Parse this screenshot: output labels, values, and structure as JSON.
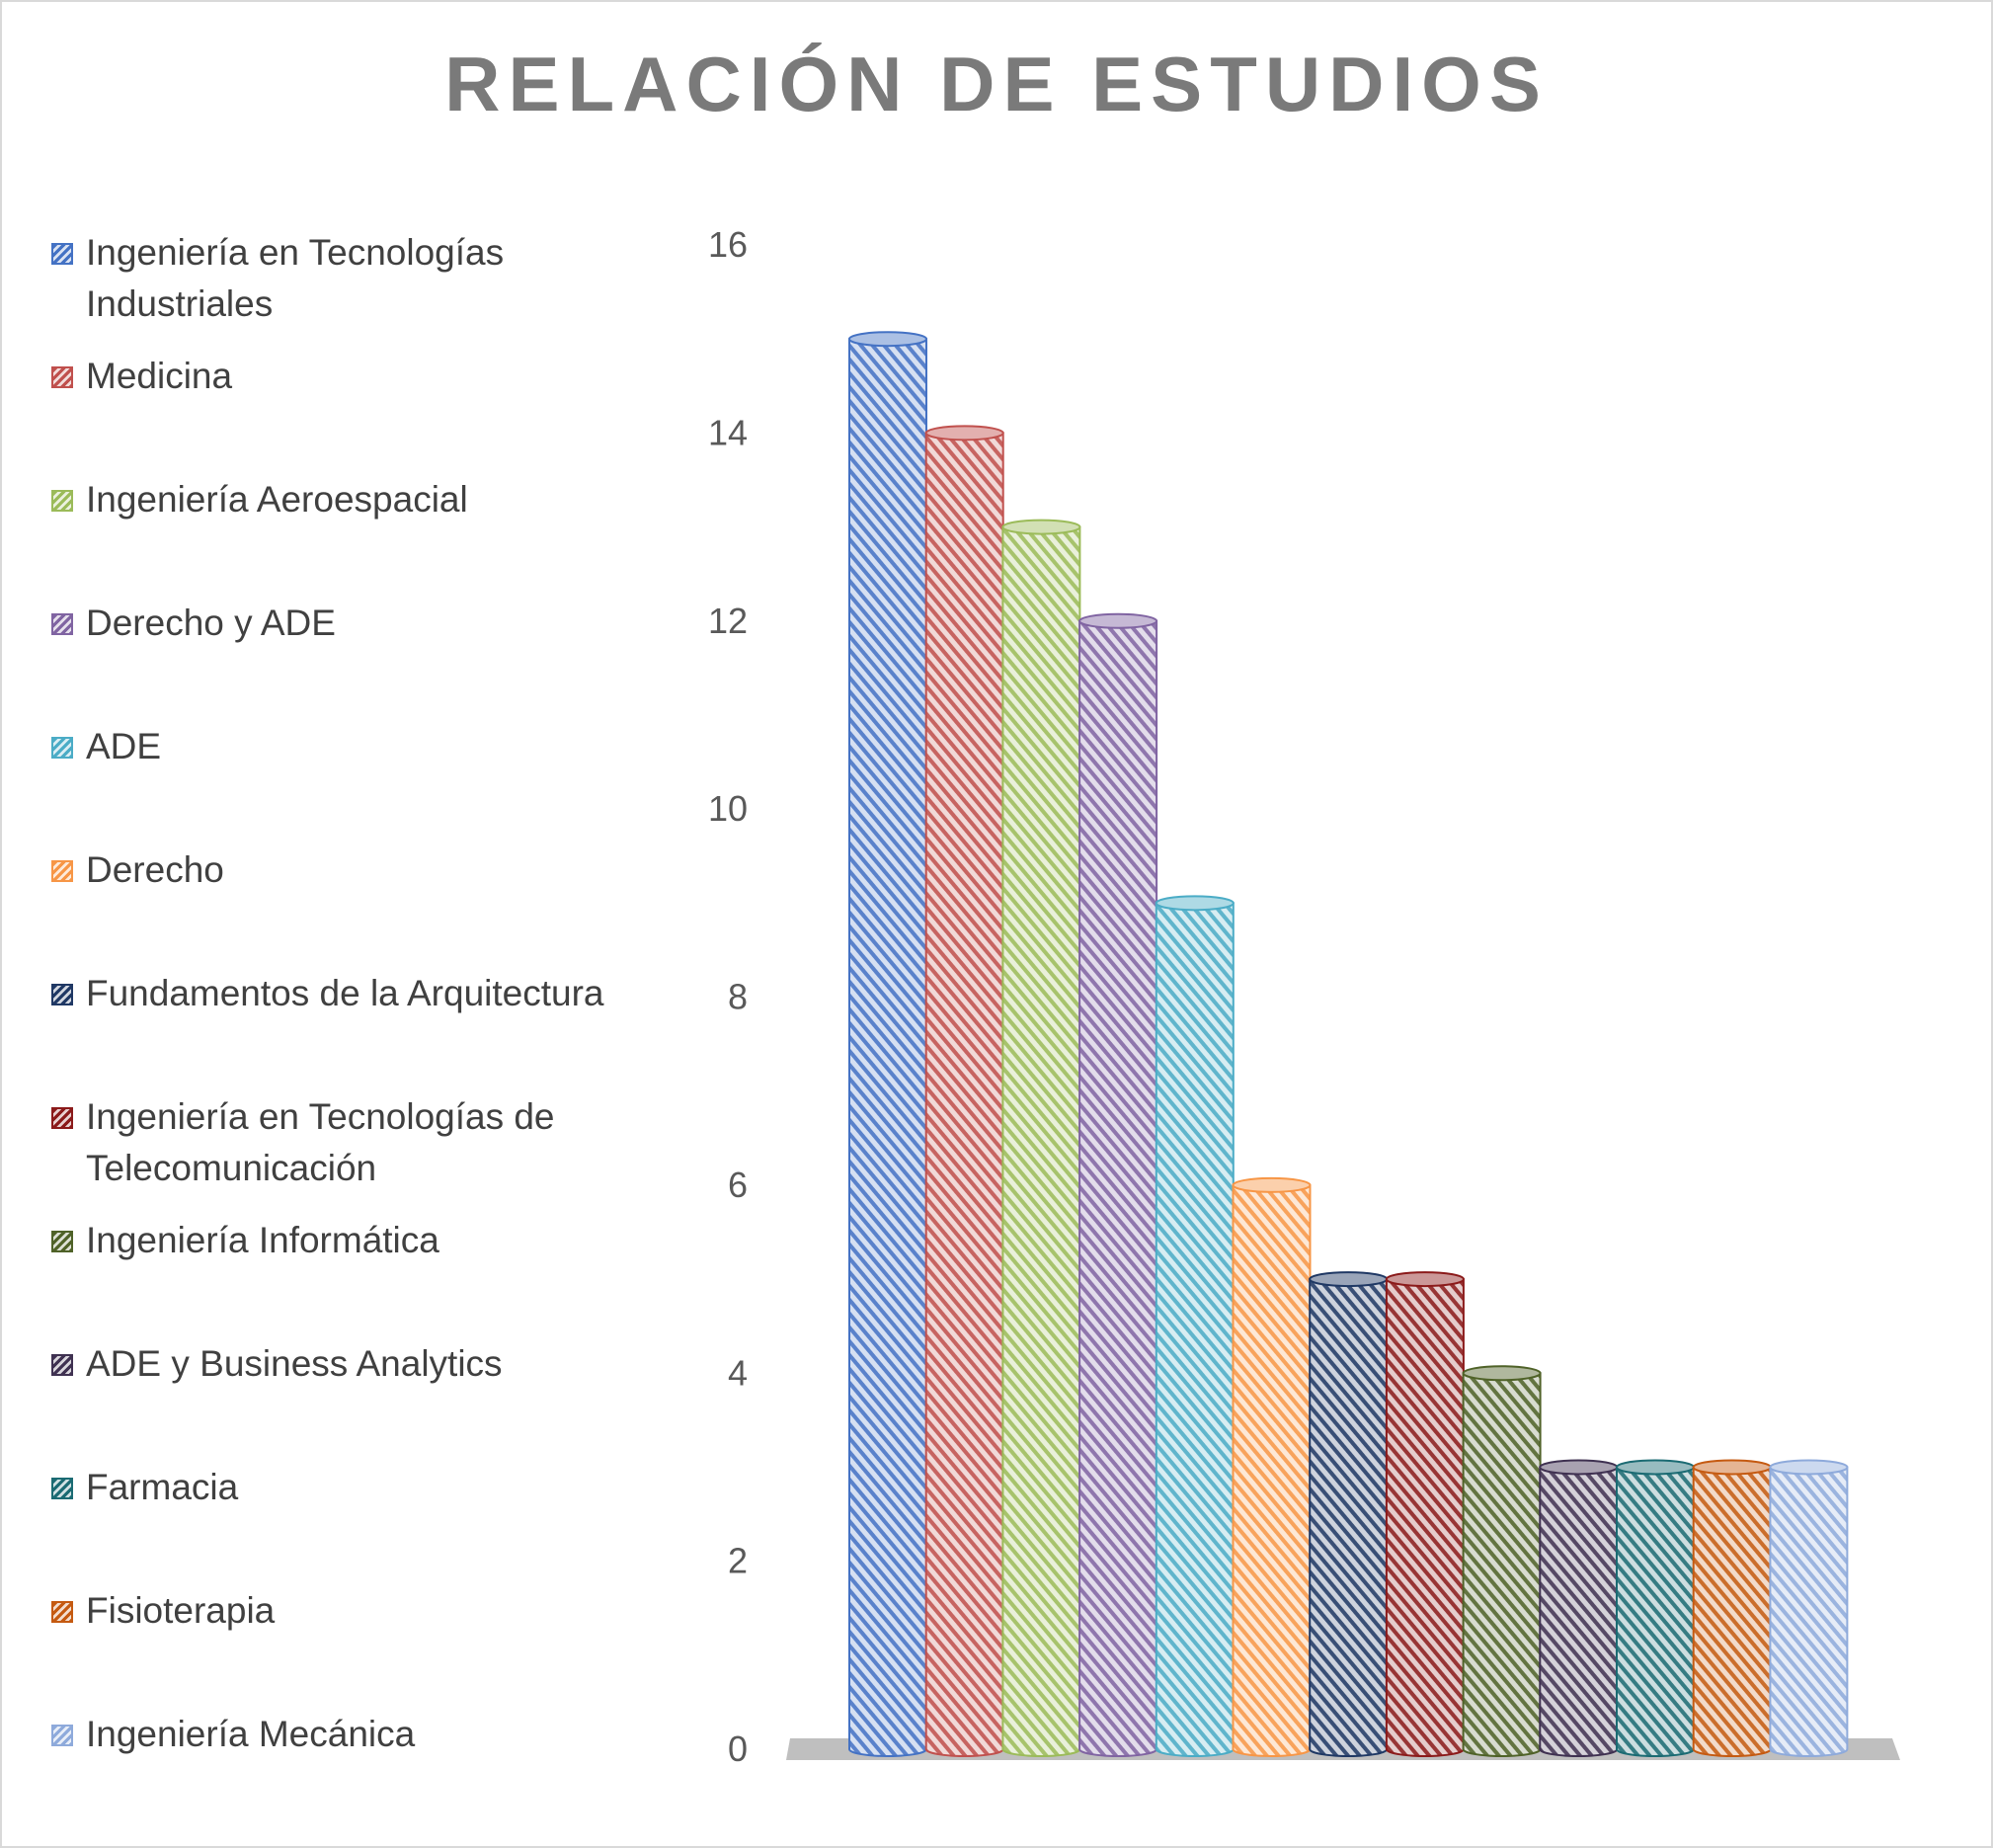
{
  "chart_data": {
    "type": "bar",
    "style": "3d-cylinder",
    "title": "RELACIÓN DE ESTUDIOS",
    "xlabel": "",
    "ylabel": "",
    "ylim": [
      0,
      16
    ],
    "yticks": [
      "0",
      "2",
      "4",
      "6",
      "8",
      "10",
      "12",
      "14",
      "16"
    ],
    "grid": false,
    "legend_position": "left",
    "categories": [
      "Ingeniería en Tecnologías Industriales",
      "Medicina",
      "Ingeniería Aeroespacial",
      "Derecho y ADE",
      "ADE",
      "Derecho",
      "Fundamentos de la Arquitectura",
      "Ingeniería en Tecnologías de Telecomunicación",
      "Ingeniería Informática",
      "ADE y Business Analytics",
      "Farmacia",
      "Fisioterapia",
      "Ingeniería Mecánica"
    ],
    "values": [
      15,
      14,
      13,
      12,
      9,
      6,
      5,
      5,
      4,
      3,
      3,
      3,
      3
    ],
    "colors": [
      "#4472c4",
      "#c0504d",
      "#9bbb59",
      "#8064a2",
      "#4bacc6",
      "#f79646",
      "#1f3864",
      "#8b1a1a",
      "#4f6228",
      "#3f3151",
      "#1b6b73",
      "#c55a11",
      "#8eaadb"
    ]
  }
}
